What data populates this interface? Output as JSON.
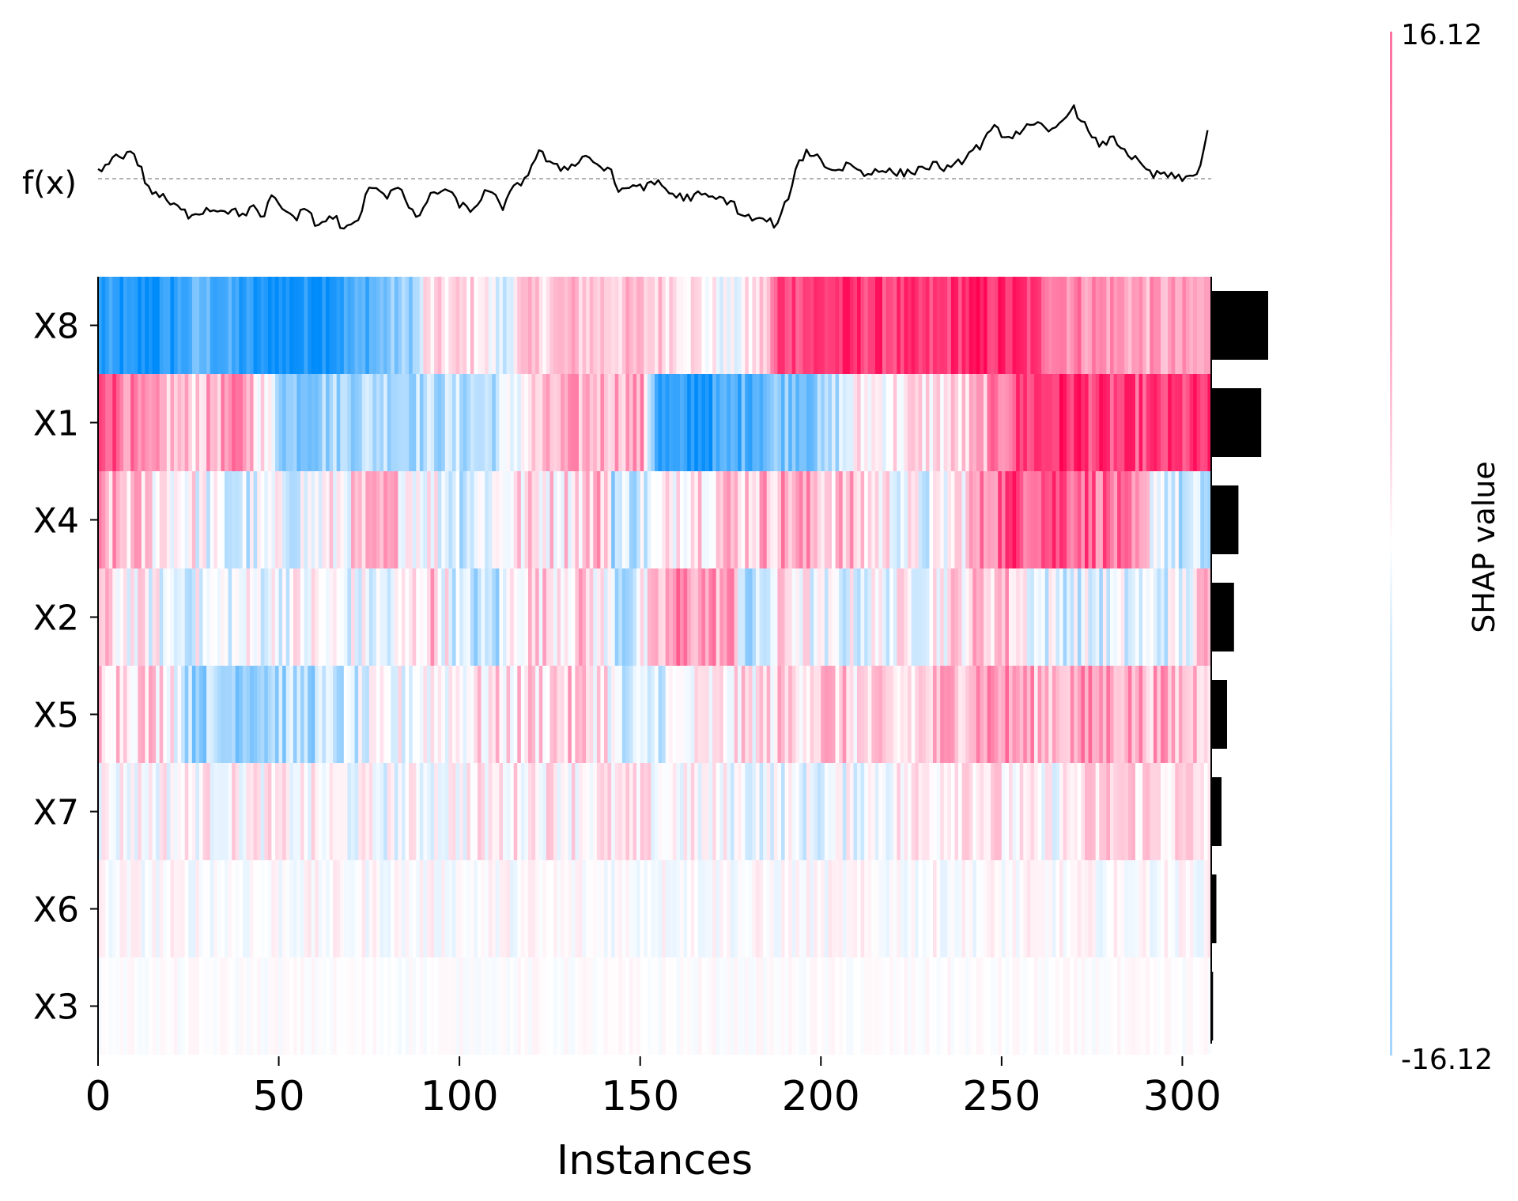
{
  "chart_data": {
    "type": "heatmap",
    "title": "",
    "xlabel": "Instances",
    "ylabel": "",
    "fx_label": "f(x)",
    "features": [
      "X8",
      "X1",
      "X4",
      "X2",
      "X5",
      "X7",
      "X6",
      "X3"
    ],
    "n_instances": 308,
    "x_ticks": [
      0,
      50,
      100,
      150,
      200,
      250,
      300
    ],
    "x_tick_labels": [
      "0",
      "50",
      "100",
      "150",
      "200",
      "250",
      "300"
    ],
    "colorbar": {
      "label": "SHAP value",
      "max": 16.12,
      "min": -16.12,
      "max_label": "16.12",
      "min_label": "-16.12"
    },
    "colors": {
      "positive": "#ff0051",
      "negative": "#008bfb",
      "line": "#000000",
      "baseline": "#999999"
    },
    "mean_abs_importance": [
      15.5,
      13.6,
      7.4,
      6.2,
      4.3,
      2.8,
      1.4,
      0.5
    ],
    "fx": {
      "baseline": 0,
      "knots": [
        [
          0,
          2
        ],
        [
          2,
          4
        ],
        [
          4,
          9
        ],
        [
          6,
          7
        ],
        [
          8,
          10
        ],
        [
          10,
          9
        ],
        [
          12,
          3
        ],
        [
          14,
          -4
        ],
        [
          16,
          -5
        ],
        [
          20,
          -9
        ],
        [
          25,
          -13
        ],
        [
          30,
          -11
        ],
        [
          35,
          -11
        ],
        [
          40,
          -13
        ],
        [
          43,
          -10
        ],
        [
          45,
          -15
        ],
        [
          48,
          -7
        ],
        [
          52,
          -12
        ],
        [
          55,
          -14
        ],
        [
          58,
          -10
        ],
        [
          60,
          -17
        ],
        [
          63,
          -15
        ],
        [
          66,
          -14
        ],
        [
          68,
          -19
        ],
        [
          72,
          -15
        ],
        [
          74,
          -7
        ],
        [
          76,
          -2
        ],
        [
          78,
          -4
        ],
        [
          80,
          -6
        ],
        [
          83,
          -2
        ],
        [
          85,
          -8
        ],
        [
          88,
          -15
        ],
        [
          90,
          -10
        ],
        [
          93,
          -5
        ],
        [
          96,
          -4
        ],
        [
          100,
          -9
        ],
        [
          103,
          -12
        ],
        [
          107,
          -5
        ],
        [
          110,
          -7
        ],
        [
          112,
          -10
        ],
        [
          115,
          -4
        ],
        [
          118,
          0
        ],
        [
          120,
          5
        ],
        [
          122,
          10
        ],
        [
          126,
          4
        ],
        [
          130,
          4
        ],
        [
          133,
          7
        ],
        [
          136,
          8
        ],
        [
          140,
          3
        ],
        [
          142,
          4
        ],
        [
          144,
          -6
        ],
        [
          148,
          -2
        ],
        [
          152,
          -3
        ],
        [
          155,
          -1
        ],
        [
          158,
          -5
        ],
        [
          162,
          -7
        ],
        [
          166,
          -6
        ],
        [
          170,
          -7
        ],
        [
          175,
          -8
        ],
        [
          178,
          -13
        ],
        [
          182,
          -15
        ],
        [
          185,
          -15
        ],
        [
          188,
          -17
        ],
        [
          190,
          -10
        ],
        [
          192,
          -2
        ],
        [
          194,
          6
        ],
        [
          196,
          10
        ],
        [
          199,
          8
        ],
        [
          202,
          4
        ],
        [
          205,
          3
        ],
        [
          208,
          6
        ],
        [
          212,
          1
        ],
        [
          216,
          4
        ],
        [
          220,
          2
        ],
        [
          224,
          2
        ],
        [
          228,
          4
        ],
        [
          232,
          5
        ],
        [
          236,
          3
        ],
        [
          240,
          8
        ],
        [
          244,
          12
        ],
        [
          248,
          18
        ],
        [
          252,
          15
        ],
        [
          256,
          18
        ],
        [
          260,
          19
        ],
        [
          264,
          17
        ],
        [
          266,
          20
        ],
        [
          268,
          24
        ],
        [
          270,
          25
        ],
        [
          272,
          22
        ],
        [
          275,
          14
        ],
        [
          278,
          12
        ],
        [
          280,
          15
        ],
        [
          283,
          12
        ],
        [
          286,
          8
        ],
        [
          289,
          4
        ],
        [
          292,
          1
        ],
        [
          295,
          2
        ],
        [
          298,
          0
        ],
        [
          301,
          0
        ],
        [
          303,
          1
        ],
        [
          305,
          5
        ],
        [
          307,
          17
        ]
      ]
    },
    "rows": [
      {
        "name": "X8",
        "base": [
          [
            0,
            -0.85
          ],
          [
            12,
            -0.95
          ],
          [
            20,
            -0.85
          ],
          [
            28,
            -0.6
          ],
          [
            45,
            -0.95
          ],
          [
            60,
            -0.9
          ],
          [
            72,
            -0.7
          ],
          [
            80,
            -0.5
          ],
          [
            88,
            -0.35
          ],
          [
            90,
            0.1
          ],
          [
            105,
            0.15
          ],
          [
            112,
            -0.25
          ],
          [
            115,
            0.15
          ],
          [
            130,
            0.25
          ],
          [
            160,
            0.2
          ],
          [
            175,
            -0.1
          ],
          [
            185,
            0.25
          ],
          [
            188,
            0.75
          ],
          [
            210,
            0.8
          ],
          [
            230,
            0.7
          ],
          [
            240,
            0.85
          ],
          [
            255,
            0.8
          ],
          [
            268,
            0.5
          ],
          [
            290,
            0.35
          ],
          [
            307,
            0.3
          ]
        ],
        "noise": 0.18
      },
      {
        "name": "X1",
        "base": [
          [
            0,
            0.85
          ],
          [
            12,
            0.3
          ],
          [
            25,
            0.2
          ],
          [
            40,
            0.45
          ],
          [
            52,
            -0.45
          ],
          [
            70,
            -0.3
          ],
          [
            80,
            -0.25
          ],
          [
            90,
            -0.3
          ],
          [
            110,
            -0.25
          ],
          [
            118,
            0.1
          ],
          [
            130,
            0.3
          ],
          [
            150,
            0.35
          ],
          [
            155,
            -0.85
          ],
          [
            165,
            -0.9
          ],
          [
            188,
            -0.45
          ],
          [
            200,
            -0.45
          ],
          [
            210,
            0.05
          ],
          [
            240,
            0.15
          ],
          [
            255,
            0.75
          ],
          [
            270,
            0.85
          ],
          [
            280,
            0.7
          ],
          [
            307,
            0.75
          ]
        ],
        "noise": 0.22
      },
      {
        "name": "X4",
        "base": [
          [
            0,
            0.3
          ],
          [
            25,
            0.05
          ],
          [
            35,
            -0.2
          ],
          [
            60,
            -0.05
          ],
          [
            80,
            0.25
          ],
          [
            100,
            -0.15
          ],
          [
            115,
            0.1
          ],
          [
            130,
            0.15
          ],
          [
            140,
            0.3
          ],
          [
            142,
            -0.25
          ],
          [
            155,
            -0.1
          ],
          [
            160,
            0.2
          ],
          [
            180,
            0.25
          ],
          [
            190,
            0.35
          ],
          [
            210,
            0.2
          ],
          [
            230,
            -0.15
          ],
          [
            240,
            0.2
          ],
          [
            250,
            0.7
          ],
          [
            265,
            0.75
          ],
          [
            280,
            0.55
          ],
          [
            300,
            -0.3
          ],
          [
            307,
            -0.3
          ]
        ],
        "noise": 0.28
      },
      {
        "name": "X2",
        "base": [
          [
            0,
            0.15
          ],
          [
            20,
            -0.1
          ],
          [
            60,
            0.0
          ],
          [
            80,
            -0.15
          ],
          [
            92,
            0.25
          ],
          [
            100,
            -0.25
          ],
          [
            110,
            -0.3
          ],
          [
            115,
            0.15
          ],
          [
            135,
            0.2
          ],
          [
            145,
            -0.3
          ],
          [
            160,
            0.45
          ],
          [
            175,
            0.35
          ],
          [
            180,
            -0.45
          ],
          [
            190,
            0.2
          ],
          [
            200,
            -0.15
          ],
          [
            230,
            0.05
          ],
          [
            250,
            0.3
          ],
          [
            260,
            -0.1
          ],
          [
            280,
            -0.15
          ],
          [
            300,
            -0.1
          ],
          [
            307,
            0.3
          ]
        ],
        "noise": 0.26
      },
      {
        "name": "X5",
        "base": [
          [
            0,
            0.25
          ],
          [
            20,
            0.15
          ],
          [
            25,
            -0.35
          ],
          [
            60,
            -0.3
          ],
          [
            80,
            -0.1
          ],
          [
            90,
            0.05
          ],
          [
            110,
            0.1
          ],
          [
            125,
            0.2
          ],
          [
            140,
            0.15
          ],
          [
            145,
            -0.3
          ],
          [
            155,
            -0.1
          ],
          [
            180,
            0.1
          ],
          [
            200,
            0.25
          ],
          [
            220,
            0.05
          ],
          [
            245,
            0.45
          ],
          [
            260,
            0.3
          ],
          [
            280,
            0.4
          ],
          [
            300,
            0.25
          ],
          [
            307,
            0.3
          ]
        ],
        "noise": 0.25
      },
      {
        "name": "X7",
        "base": [
          [
            0,
            0.0
          ],
          [
            40,
            0.05
          ],
          [
            80,
            -0.05
          ],
          [
            120,
            0.1
          ],
          [
            150,
            0.05
          ],
          [
            180,
            -0.05
          ],
          [
            200,
            -0.1
          ],
          [
            230,
            0.1
          ],
          [
            240,
            0.2
          ],
          [
            260,
            -0.05
          ],
          [
            280,
            0.2
          ],
          [
            307,
            0.1
          ]
        ],
        "noise": 0.2
      },
      {
        "name": "X6",
        "base": [
          [
            0,
            0.0
          ],
          [
            307,
            0.0
          ]
        ],
        "noise": 0.11
      },
      {
        "name": "X3",
        "base": [
          [
            0,
            0.0
          ],
          [
            307,
            0.0
          ]
        ],
        "noise": 0.05
      }
    ]
  }
}
